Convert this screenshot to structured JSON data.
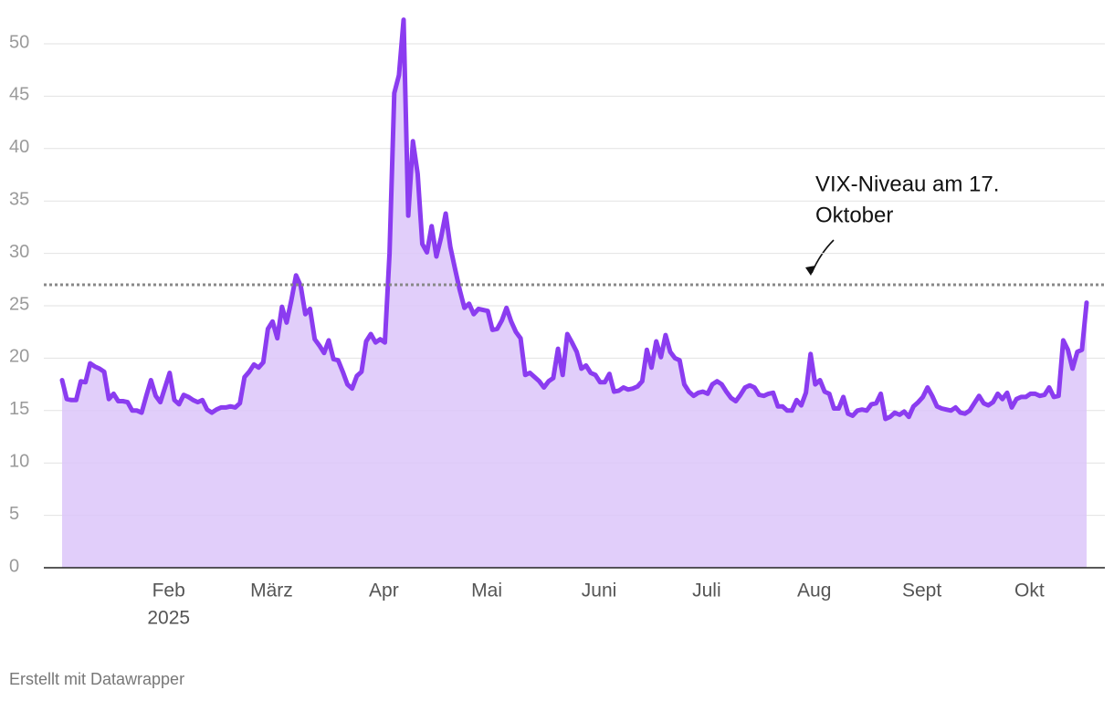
{
  "chart_data": {
    "type": "area",
    "series": [
      {
        "color": "#8b3cf0",
        "fill": "#dcc5f9",
        "values": [
          17.9,
          16.1,
          16.0,
          16.0,
          17.8,
          17.7,
          19.5,
          19.2,
          19.0,
          18.7,
          16.1,
          16.6,
          15.9,
          15.9,
          15.8,
          15.0,
          15.0,
          14.8,
          16.4,
          17.9,
          16.4,
          15.8,
          17.2,
          18.6,
          16.0,
          15.6,
          16.5,
          16.3,
          16.0,
          15.8,
          16.0,
          15.1,
          14.8,
          15.1,
          15.3,
          15.3,
          15.4,
          15.3,
          15.7,
          18.2,
          18.7,
          19.4,
          19.1,
          19.6,
          22.8,
          23.5,
          21.9,
          24.9,
          23.4,
          25.5,
          27.9,
          26.9,
          24.2,
          24.7,
          21.8,
          21.2,
          20.5,
          21.7,
          19.9,
          19.8,
          18.7,
          17.5,
          17.1,
          18.3,
          18.7,
          21.6,
          22.3,
          21.5,
          21.8,
          21.5,
          30.0,
          45.3,
          47.0,
          52.3,
          33.6,
          40.7,
          37.6,
          30.9,
          30.1,
          32.6,
          29.7,
          31.5,
          33.8,
          30.6,
          28.5,
          26.5,
          24.8,
          25.2,
          24.2,
          24.7,
          24.6,
          24.5,
          22.7,
          22.8,
          23.6,
          24.8,
          23.5,
          22.5,
          21.9,
          18.4,
          18.6,
          18.2,
          17.8,
          17.2,
          17.8,
          18.1,
          20.9,
          18.4,
          22.3,
          21.5,
          20.6,
          19.0,
          19.3,
          18.6,
          18.4,
          17.7,
          17.7,
          18.5,
          16.8,
          16.9,
          17.2,
          17.0,
          17.1,
          17.3,
          17.8,
          20.8,
          19.1,
          21.6,
          20.1,
          22.2,
          20.6,
          20.0,
          19.8,
          17.5,
          16.8,
          16.4,
          16.7,
          16.8,
          16.6,
          17.5,
          17.8,
          17.5,
          16.8,
          16.2,
          15.9,
          16.5,
          17.2,
          17.4,
          17.2,
          16.5,
          16.4,
          16.6,
          16.7,
          15.4,
          15.4,
          15.0,
          15.0,
          16.0,
          15.5,
          16.7,
          20.4,
          17.5,
          17.9,
          16.8,
          16.6,
          15.2,
          15.2,
          16.3,
          14.7,
          14.5,
          15.0,
          15.1,
          15.0,
          15.6,
          15.7,
          16.6,
          14.2,
          14.4,
          14.8,
          14.6,
          14.9,
          14.4,
          15.4,
          15.8,
          16.3,
          17.2,
          16.4,
          15.4,
          15.2,
          15.1,
          15.0,
          15.3,
          14.8,
          14.7,
          15.0,
          15.7,
          16.4,
          15.7,
          15.5,
          15.8,
          16.6,
          16.1,
          16.7,
          15.3,
          16.1,
          16.3,
          16.3,
          16.6,
          16.6,
          16.4,
          16.5,
          17.2,
          16.3,
          16.4,
          21.7,
          20.8,
          19.0,
          20.6,
          20.8,
          25.3
        ]
      }
    ],
    "categories": [
      null,
      null,
      null,
      null,
      null,
      null,
      null,
      null,
      null,
      null,
      null,
      null,
      null,
      null,
      null,
      null,
      null,
      null,
      null,
      null,
      null,
      null,
      "Feb",
      null,
      null,
      null,
      null,
      null,
      null,
      null,
      null,
      null,
      null,
      null,
      null,
      null,
      null,
      null,
      null,
      null,
      null,
      null,
      null,
      null,
      "März",
      null,
      null,
      null,
      null,
      null,
      null,
      null,
      null,
      null,
      null,
      null,
      null,
      null,
      null,
      null,
      null,
      null,
      null,
      null,
      null,
      null,
      null,
      null,
      "Apr",
      null,
      null,
      null,
      null,
      null,
      null,
      null,
      null,
      null,
      null,
      null,
      null,
      null,
      null,
      null,
      null,
      null,
      null,
      null,
      null,
      null,
      "Mai",
      null,
      null,
      null,
      null,
      null,
      null,
      null,
      null,
      null,
      null,
      null,
      null,
      null,
      null,
      null,
      null,
      null,
      null,
      null,
      null,
      null,
      null,
      null,
      "Juni",
      null,
      null,
      null,
      null,
      null,
      null,
      null,
      null,
      null,
      null,
      null,
      null,
      null,
      null,
      null,
      null,
      null,
      null,
      null,
      null,
      null,
      null,
      "Juli",
      null,
      null,
      null,
      null,
      null,
      null,
      null,
      null,
      null,
      null,
      null,
      null,
      null,
      null,
      null,
      null,
      null,
      null,
      null,
      null,
      null,
      null,
      "Aug",
      null,
      null,
      null,
      null,
      null,
      null,
      null,
      null,
      null,
      null,
      null,
      null,
      null,
      null,
      null,
      null,
      null,
      null,
      null,
      null,
      null,
      null,
      "Sept",
      null,
      null,
      null,
      null,
      null,
      null,
      null,
      null,
      null,
      null,
      null,
      null,
      null,
      null,
      null,
      null,
      null,
      null,
      null,
      null,
      null,
      null,
      "Okt",
      null,
      null,
      null,
      null,
      null,
      null,
      null,
      null,
      null,
      null,
      null,
      null,
      null
    ],
    "year_label": "2025",
    "ylim": [
      0,
      50
    ],
    "yticks": [
      0,
      5,
      10,
      15,
      20,
      25,
      30,
      35,
      40,
      45,
      50
    ],
    "grid": true,
    "reference_line": {
      "value": 27,
      "color": "#888888"
    },
    "annotation": [
      "VIX-Niveau am 17.",
      "Oktober"
    ],
    "footer": "Erstellt mit Datawrapper"
  }
}
